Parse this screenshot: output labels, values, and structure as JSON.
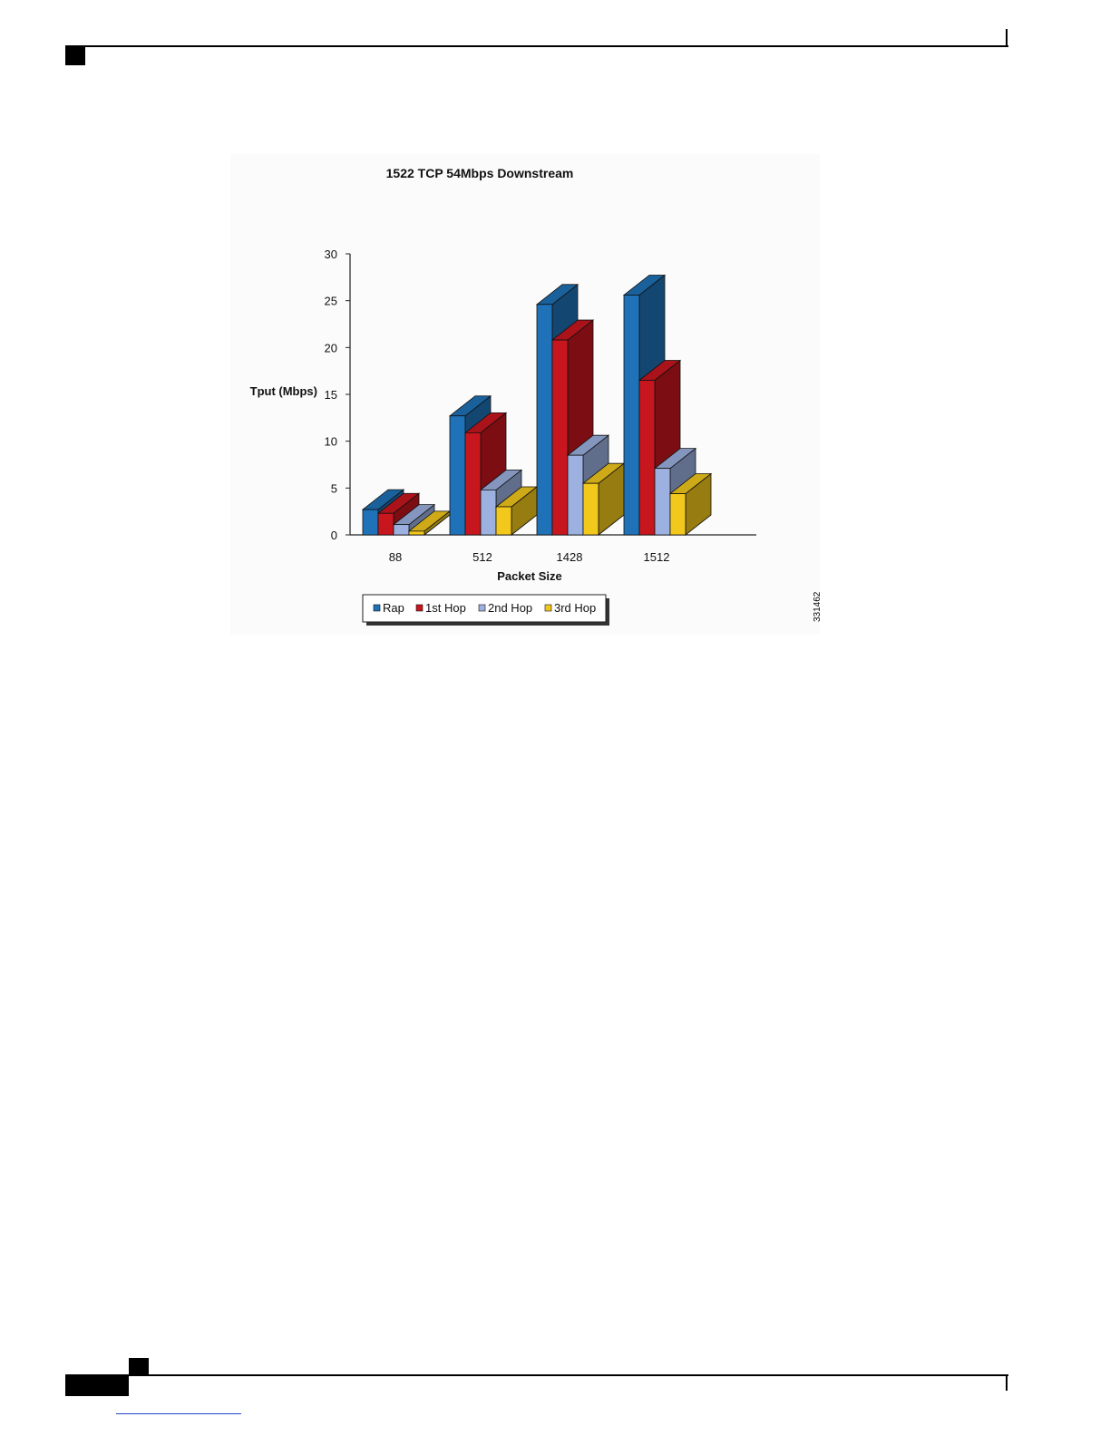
{
  "figure_id": "331462",
  "chart_data": {
    "type": "bar",
    "title": "1522 TCP 54Mbps Downstream",
    "xlabel": "Packet Size",
    "ylabel": "Tput (Mbps)",
    "categories": [
      "88",
      "512",
      "1428",
      "1512"
    ],
    "ylim": [
      0,
      30
    ],
    "yticks": [
      "0",
      "5",
      "10",
      "15",
      "20",
      "25",
      "30"
    ],
    "grid": false,
    "legend_position": "bottom",
    "series": [
      {
        "name": "Rap",
        "values": [
          2.7,
          12.7,
          24.6,
          25.6
        ],
        "color": "#1f72b8"
      },
      {
        "name": "1st Hop",
        "values": [
          2.3,
          10.9,
          20.8,
          16.5
        ],
        "color": "#c8161e"
      },
      {
        "name": "2nd Hop",
        "values": [
          1.1,
          4.8,
          8.5,
          7.1
        ],
        "color": "#9db1e0"
      },
      {
        "name": "3rd Hop",
        "values": [
          0.4,
          3.0,
          5.5,
          4.4
        ],
        "color": "#f2c81c"
      }
    ]
  }
}
